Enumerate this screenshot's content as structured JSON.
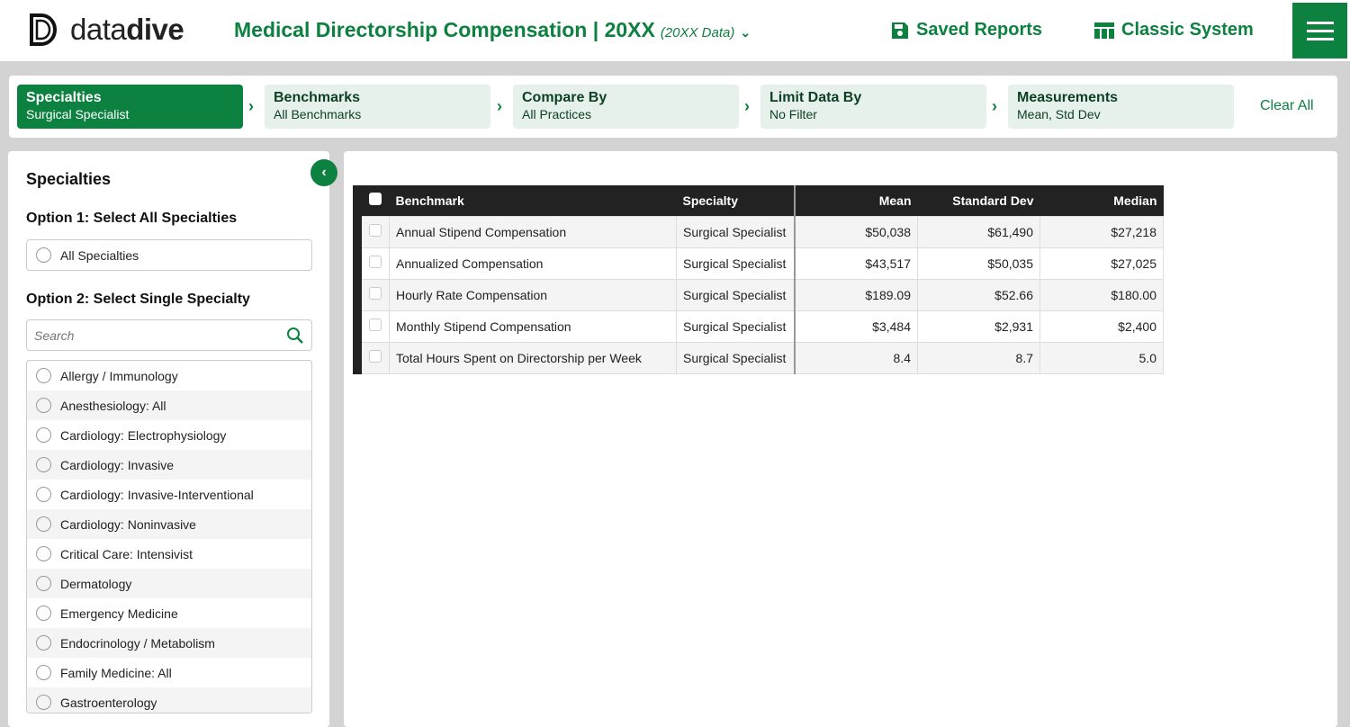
{
  "header": {
    "logo": "datadive",
    "title": "Medical Directorship Compensation | 20XX",
    "data_year": "(20XX Data)",
    "saved_reports": "Saved Reports",
    "classic_system": "Classic System"
  },
  "steps": [
    {
      "title": "Specialties",
      "value": "Surgical Specialist"
    },
    {
      "title": "Benchmarks",
      "value": "All Benchmarks"
    },
    {
      "title": "Compare By",
      "value": "All Practices"
    },
    {
      "title": "Limit Data By",
      "value": "No Filter"
    },
    {
      "title": "Measurements",
      "value": "Mean, Std Dev"
    }
  ],
  "clear_all": "Clear All",
  "sidebar": {
    "heading": "Specialties",
    "option1": "Option 1: Select All Specialties",
    "all_label": "All Specialties",
    "option2": "Option 2: Select Single Specialty",
    "search_placeholder": "Search",
    "items": [
      "Allergy / Immunology",
      "Anesthesiology: All",
      "Cardiology: Electrophysiology",
      "Cardiology: Invasive",
      "Cardiology: Invasive-Interventional",
      "Cardiology: Noninvasive",
      "Critical Care: Intensivist",
      "Dermatology",
      "Emergency Medicine",
      "Endocrinology / Metabolism",
      "Family Medicine: All",
      "Gastroenterology"
    ]
  },
  "table": {
    "columns": [
      "Benchmark",
      "Specialty",
      "Mean",
      "Standard Dev",
      "Median"
    ],
    "rows": [
      [
        "Annual Stipend Compensation",
        "Surgical Specialist",
        "$50,038",
        "$61,490",
        "$27,218"
      ],
      [
        "Annualized Compensation",
        "Surgical Specialist",
        "$43,517",
        "$50,035",
        "$27,025"
      ],
      [
        "Hourly Rate Compensation",
        "Surgical Specialist",
        "$189.09",
        "$52.66",
        "$180.00"
      ],
      [
        "Monthly Stipend Compensation",
        "Surgical Specialist",
        "$3,484",
        "$2,931",
        "$2,400"
      ],
      [
        "Total Hours Spent on Directorship per Week",
        "Surgical Specialist",
        "8.4",
        "8.7",
        "5.0"
      ]
    ]
  }
}
